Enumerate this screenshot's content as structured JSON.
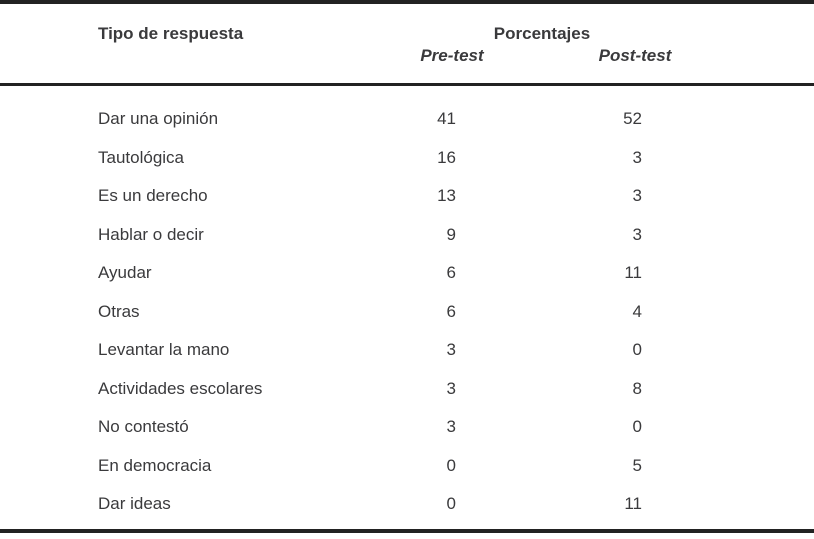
{
  "table": {
    "header": {
      "tipo": "Tipo de respuesta",
      "porcentajes": "Porcentajes",
      "pre": "Pre-test",
      "post": "Post-test"
    },
    "rows": [
      {
        "label": "Dar una opinión",
        "pre": "41",
        "post": "52"
      },
      {
        "label": "Tautológica",
        "pre": "16",
        "post": "3"
      },
      {
        "label": "Es un derecho",
        "pre": "13",
        "post": "3"
      },
      {
        "label": "Hablar o decir",
        "pre": "9",
        "post": "3"
      },
      {
        "label": "Ayudar",
        "pre": "6",
        "post": "11"
      },
      {
        "label": "Otras",
        "pre": "6",
        "post": "4"
      },
      {
        "label": "Levantar la mano",
        "pre": "3",
        "post": "0"
      },
      {
        "label": "Actividades escolares",
        "pre": "3",
        "post": "8"
      },
      {
        "label": "No contestó",
        "pre": "3",
        "post": "0"
      },
      {
        "label": "En democracia",
        "pre": "0",
        "post": "5"
      },
      {
        "label": "Dar ideas",
        "pre": "0",
        "post": "11"
      }
    ]
  },
  "colors": {
    "text": "#3a3a3c",
    "rule": "#222222",
    "background": "#ffffff"
  }
}
